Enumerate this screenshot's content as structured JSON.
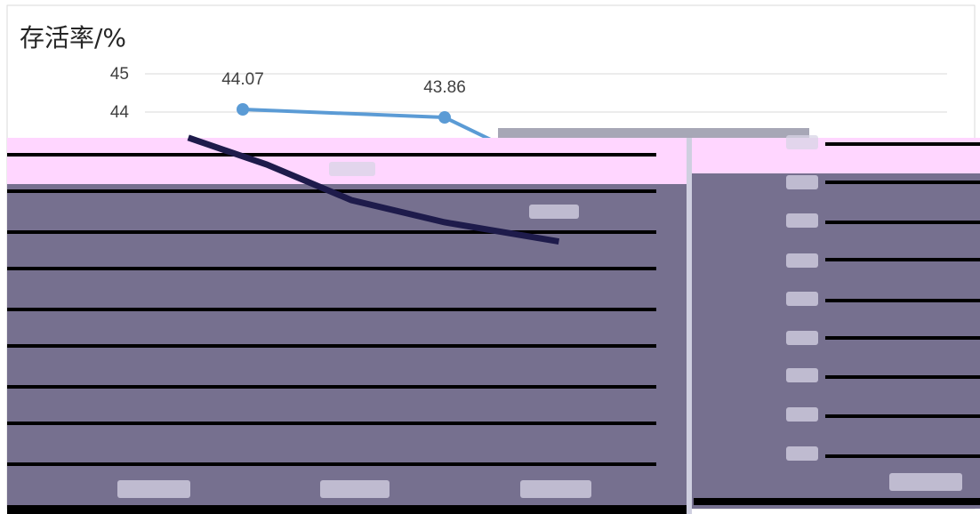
{
  "chart_data": {
    "type": "line",
    "ylabel": "存活率/%",
    "yticks": [
      "45",
      "44"
    ],
    "ylim_visible": [
      44,
      45
    ],
    "series": [
      {
        "color": "#5b9bd5",
        "points": [
          {
            "y": 44.07,
            "label": "44.07"
          },
          {
            "y": 43.86,
            "label": "43.86"
          }
        ]
      }
    ],
    "grid": true,
    "legend": "none"
  },
  "colors": {
    "line": "#5b9bd5",
    "gridline": "#d9d9d9",
    "text": "#404040",
    "frame": "#d9d9d9",
    "overlay_pink": "#ffd6ff",
    "overlay_slate": "#76708f",
    "overlay_dark": "#1e1b4b",
    "overlay_black": "#000000"
  }
}
